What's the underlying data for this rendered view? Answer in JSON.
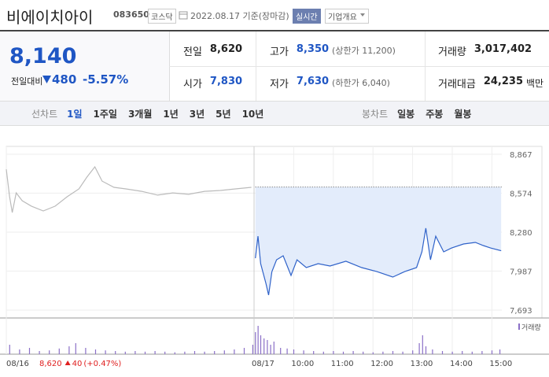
{
  "header": {
    "name": "비에이치아이",
    "code": "083650",
    "market": "코스닥",
    "date": "2022.08.17 기준(장마감)",
    "realtime": "실시간",
    "company": "기업개요"
  },
  "quote": {
    "price": "8,140",
    "change_label": "전일대비",
    "change": "480",
    "change_pct": "-5.57%"
  },
  "stats": [
    {
      "label": "전일",
      "value": "8,620"
    },
    {
      "label": "고가",
      "value": "8,350",
      "note": "(상한가 11,200)"
    },
    {
      "label": "거래량",
      "value": "3,017,402"
    },
    {
      "label": "시가",
      "value": "7,830"
    },
    {
      "label": "저가",
      "value": "7,630",
      "note": "(하한가 6,040)"
    },
    {
      "label": "거래대금",
      "value": "24,235",
      "unit": "백만"
    }
  ],
  "tabs": {
    "line_label": "선차트",
    "line_periods": [
      "1일",
      "1주일",
      "3개월",
      "1년",
      "3년",
      "5년",
      "10년"
    ],
    "candle_label": "봉차트",
    "candle_periods": [
      "일봉",
      "주봉",
      "월봉"
    ]
  },
  "chart_data": {
    "type": "line",
    "prev_close": 8620,
    "xlim": [
      15,
      765
    ],
    "ylim": [
      7693,
      8867
    ],
    "yticks": [
      {
        "value": 7693,
        "label": "7,693"
      },
      {
        "value": 7987,
        "label": "7,987"
      },
      {
        "value": 8280,
        "label": "8,280"
      },
      {
        "value": 8574,
        "label": "8,574"
      },
      {
        "value": 8867,
        "label": "8,867"
      }
    ],
    "xticks": [
      {
        "value": 15,
        "label": "08/16"
      },
      {
        "value": 390,
        "label": "08/17"
      },
      {
        "value": 450,
        "label": "10:00"
      },
      {
        "value": 510,
        "label": "11:00"
      },
      {
        "value": 570,
        "label": "12:00"
      },
      {
        "value": 630,
        "label": "13:00"
      },
      {
        "value": 690,
        "label": "14:00"
      },
      {
        "value": 750,
        "label": "15:00"
      }
    ],
    "grid": true,
    "series": [
      {
        "color": "#bbbbbb",
        "x": [
          15,
          20,
          24,
          30,
          39,
          53,
          71,
          89,
          107,
          125,
          137,
          149,
          160,
          178,
          196,
          220,
          244,
          267,
          291,
          315,
          339,
          362,
          386
        ],
        "values": [
          8754,
          8547,
          8428,
          8576,
          8517,
          8476,
          8440,
          8476,
          8547,
          8606,
          8695,
          8772,
          8665,
          8618,
          8606,
          8588,
          8559,
          8576,
          8565,
          8588,
          8594,
          8606,
          8618
        ]
      },
      {
        "color": "#2f62c9",
        "fill": "#e3ecfb",
        "x": [
          392,
          396,
          400,
          408,
          412,
          417,
          424,
          434,
          446,
          455,
          469,
          487,
          505,
          529,
          553,
          576,
          600,
          618,
          636,
          644,
          650,
          657,
          665,
          677,
          689,
          707,
          725,
          737,
          748,
          764
        ],
        "values": [
          8084,
          8250,
          8043,
          7894,
          7806,
          7983,
          8072,
          8102,
          7954,
          8072,
          8013,
          8043,
          8025,
          8061,
          8013,
          7983,
          7942,
          7983,
          8013,
          8132,
          8310,
          8072,
          8250,
          8132,
          8161,
          8191,
          8203,
          8179,
          8161,
          8140
        ]
      }
    ],
    "volume": {
      "label": "거래량",
      "color": "#8a6fc7",
      "ylim": [
        0,
        100
      ],
      "x": [
        20,
        35,
        50,
        65,
        80,
        95,
        110,
        120,
        135,
        150,
        165,
        180,
        195,
        210,
        225,
        240,
        255,
        270,
        285,
        300,
        315,
        330,
        345,
        360,
        375,
        388,
        392,
        396,
        400,
        405,
        410,
        415,
        420,
        430,
        440,
        450,
        465,
        480,
        495,
        510,
        525,
        540,
        555,
        570,
        585,
        600,
        615,
        630,
        640,
        645,
        650,
        660,
        675,
        690,
        705,
        720,
        735,
        750,
        762
      ],
      "values": [
        30,
        15,
        20,
        10,
        12,
        18,
        25,
        35,
        20,
        15,
        12,
        10,
        8,
        10,
        8,
        10,
        8,
        6,
        8,
        10,
        8,
        10,
        12,
        15,
        20,
        30,
        70,
        90,
        60,
        50,
        45,
        30,
        40,
        20,
        18,
        15,
        12,
        10,
        8,
        10,
        8,
        10,
        8,
        6,
        8,
        10,
        8,
        12,
        35,
        60,
        25,
        15,
        10,
        8,
        10,
        8,
        10,
        12,
        15
      ]
    },
    "footer": {
      "close": "8,620",
      "change": "40",
      "change_pct": "(+0.47%)"
    }
  }
}
